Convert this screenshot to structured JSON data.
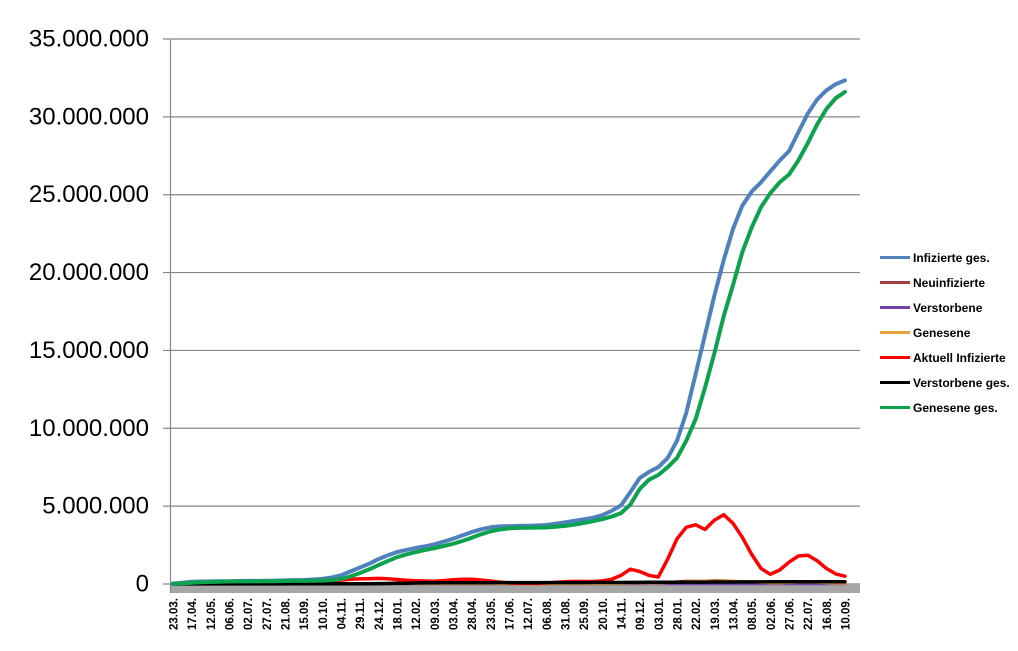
{
  "chart_data": {
    "type": "line",
    "title": "",
    "legend_position": "right",
    "grid": true,
    "colors": {
      "background": "#FFFFFF",
      "gridline": "#878787",
      "axis_line": "#878787",
      "axis_band": "#A6A6A6",
      "text": "#000000"
    },
    "y_axis": {
      "min": 0,
      "max": 35000000,
      "step": 5000000,
      "tick_labels": [
        "35.000.000",
        "30.000.000",
        "25.000.000",
        "20.000.000",
        "15.000.000",
        "10.000.000",
        "5.000.000",
        "0"
      ]
    },
    "x_axis": {
      "rotation": -90,
      "points_per_label": 2,
      "tick_labels": [
        "23.03.",
        "17.04.",
        "12.05.",
        "06.06.",
        "02.07.",
        "27.07.",
        "21.08.",
        "15.09.",
        "10.10.",
        "04.11.",
        "29.11.",
        "24.12.",
        "18.01.",
        "12.02.",
        "09.03.",
        "03.04.",
        "28.04.",
        "23.05.",
        "17.06.",
        "12.07.",
        "06.08.",
        "31.08.",
        "25.09.",
        "20.10.",
        "14.11.",
        "09.12.",
        "03.01.",
        "28.01.",
        "22.02.",
        "19.03.",
        "13.04.",
        "08.05.",
        "02.06.",
        "27.06.",
        "22.07.",
        "16.08.",
        "10.09."
      ]
    },
    "values_unit": "millions",
    "series": [
      {
        "name": "Infizierte ges.",
        "color": "#4F81BD",
        "line_width": 4,
        "values_millions": [
          0.03,
          0.08,
          0.14,
          0.16,
          0.17,
          0.18,
          0.18,
          0.19,
          0.2,
          0.2,
          0.21,
          0.22,
          0.23,
          0.25,
          0.26,
          0.29,
          0.33,
          0.42,
          0.56,
          0.8,
          1.05,
          1.3,
          1.59,
          1.84,
          2.05,
          2.19,
          2.32,
          2.42,
          2.55,
          2.72,
          2.91,
          3.12,
          3.33,
          3.51,
          3.64,
          3.7,
          3.72,
          3.73,
          3.74,
          3.76,
          3.79,
          3.87,
          3.96,
          4.05,
          4.15,
          4.26,
          4.42,
          4.7,
          5.05,
          5.9,
          6.8,
          7.2,
          7.5,
          8.1,
          9.2,
          11.0,
          13.5,
          16.0,
          18.5,
          20.8,
          22.8,
          24.3,
          25.2,
          25.8,
          26.5,
          27.2,
          27.8,
          29.0,
          30.2,
          31.1,
          31.7,
          32.1,
          32.35
        ]
      },
      {
        "name": "Neuinfizierte",
        "color": "#9E413E",
        "line_width": 2.5,
        "values_millions": [
          0.004,
          0.006,
          0.003,
          0.002,
          0.001,
          0.001,
          0.001,
          0.001,
          0.001,
          0.001,
          0.001,
          0.001,
          0.001,
          0.001,
          0.002,
          0.002,
          0.003,
          0.006,
          0.015,
          0.019,
          0.018,
          0.02,
          0.025,
          0.022,
          0.015,
          0.012,
          0.01,
          0.008,
          0.009,
          0.012,
          0.016,
          0.02,
          0.021,
          0.015,
          0.01,
          0.006,
          0.003,
          0.002,
          0.001,
          0.002,
          0.003,
          0.006,
          0.01,
          0.012,
          0.01,
          0.009,
          0.012,
          0.02,
          0.035,
          0.05,
          0.06,
          0.045,
          0.04,
          0.09,
          0.16,
          0.2,
          0.21,
          0.19,
          0.25,
          0.23,
          0.18,
          0.14,
          0.1,
          0.06,
          0.04,
          0.06,
          0.09,
          0.12,
          0.11,
          0.08,
          0.05,
          0.03,
          0.025
        ]
      },
      {
        "name": "Verstorbene",
        "color": "#7442A8",
        "line_width": 2.5,
        "values_millions": [
          0.001,
          0.001,
          0.001,
          0.001,
          0.001,
          0.001,
          0.001,
          0.001,
          0.001,
          0.001,
          0.001,
          0.001,
          0.001,
          0.001,
          0.001,
          0.001,
          0.001,
          0.001,
          0.001,
          0.001,
          0.001,
          0.001,
          0.001,
          0.001,
          0.001,
          0.001,
          0.001,
          0.001,
          0.001,
          0.001,
          0.001,
          0.001,
          0.001,
          0.001,
          0.001,
          0.001,
          0.001,
          0.001,
          0.001,
          0.001,
          0.001,
          0.001,
          0.001,
          0.001,
          0.001,
          0.001,
          0.001,
          0.001,
          0.001,
          0.001,
          0.001,
          0.001,
          0.001,
          0.001,
          0.001,
          0.001,
          0.001,
          0.001,
          0.001,
          0.001,
          0.001,
          0.001,
          0.001,
          0.001,
          0.001,
          0.001,
          0.001,
          0.001,
          0.001,
          0.001,
          0.001,
          0.001,
          0.001
        ]
      },
      {
        "name": "Genesene",
        "color": "#E9A23B",
        "line_width": 2.5,
        "values_millions": [
          0.002,
          0.004,
          0.004,
          0.003,
          0.002,
          0.001,
          0.001,
          0.001,
          0.001,
          0.001,
          0.001,
          0.001,
          0.001,
          0.001,
          0.002,
          0.002,
          0.003,
          0.005,
          0.01,
          0.015,
          0.018,
          0.018,
          0.02,
          0.022,
          0.018,
          0.014,
          0.011,
          0.009,
          0.009,
          0.01,
          0.013,
          0.017,
          0.02,
          0.018,
          0.013,
          0.008,
          0.004,
          0.002,
          0.002,
          0.002,
          0.003,
          0.005,
          0.008,
          0.011,
          0.01,
          0.009,
          0.011,
          0.017,
          0.028,
          0.042,
          0.055,
          0.05,
          0.042,
          0.07,
          0.13,
          0.18,
          0.2,
          0.195,
          0.22,
          0.23,
          0.21,
          0.17,
          0.13,
          0.085,
          0.055,
          0.06,
          0.08,
          0.105,
          0.11,
          0.095,
          0.065,
          0.04,
          0.03
        ]
      },
      {
        "name": "Aktuell Infizierte",
        "color": "#FF0000",
        "line_width": 3.5,
        "values_millions": [
          0.02,
          0.05,
          0.06,
          0.04,
          0.03,
          0.02,
          0.02,
          0.02,
          0.02,
          0.03,
          0.03,
          0.04,
          0.04,
          0.05,
          0.06,
          0.08,
          0.1,
          0.16,
          0.25,
          0.31,
          0.33,
          0.34,
          0.36,
          0.34,
          0.29,
          0.24,
          0.21,
          0.19,
          0.18,
          0.22,
          0.27,
          0.3,
          0.3,
          0.26,
          0.19,
          0.12,
          0.07,
          0.05,
          0.04,
          0.05,
          0.07,
          0.1,
          0.14,
          0.17,
          0.16,
          0.16,
          0.2,
          0.3,
          0.55,
          0.95,
          0.8,
          0.55,
          0.45,
          1.6,
          2.9,
          3.65,
          3.8,
          3.5,
          4.1,
          4.45,
          3.9,
          3.0,
          1.9,
          1.0,
          0.62,
          0.9,
          1.4,
          1.8,
          1.85,
          1.5,
          1.0,
          0.65,
          0.5
        ]
      },
      {
        "name": "Verstorbene ges.",
        "color": "#000000",
        "line_width": 3.5,
        "values_millions": [
          0.0,
          0.002,
          0.004,
          0.006,
          0.008,
          0.009,
          0.009,
          0.009,
          0.009,
          0.009,
          0.009,
          0.009,
          0.009,
          0.01,
          0.01,
          0.01,
          0.01,
          0.011,
          0.012,
          0.014,
          0.016,
          0.02,
          0.026,
          0.034,
          0.045,
          0.054,
          0.062,
          0.068,
          0.072,
          0.075,
          0.077,
          0.08,
          0.082,
          0.084,
          0.086,
          0.088,
          0.089,
          0.09,
          0.091,
          0.091,
          0.092,
          0.092,
          0.092,
          0.093,
          0.093,
          0.094,
          0.095,
          0.096,
          0.098,
          0.101,
          0.104,
          0.108,
          0.112,
          0.115,
          0.117,
          0.119,
          0.121,
          0.124,
          0.126,
          0.129,
          0.131,
          0.134,
          0.136,
          0.138,
          0.139,
          0.14,
          0.14,
          0.141,
          0.142,
          0.144,
          0.145,
          0.147,
          0.148
        ]
      },
      {
        "name": "Genesene ges.",
        "color": "#0CA24E",
        "line_width": 4,
        "values_millions": [
          0.01,
          0.03,
          0.08,
          0.11,
          0.13,
          0.15,
          0.16,
          0.17,
          0.17,
          0.17,
          0.18,
          0.18,
          0.19,
          0.2,
          0.2,
          0.21,
          0.22,
          0.25,
          0.32,
          0.48,
          0.7,
          0.94,
          1.21,
          1.47,
          1.72,
          1.9,
          2.05,
          2.18,
          2.3,
          2.44,
          2.58,
          2.76,
          2.97,
          3.19,
          3.38,
          3.5,
          3.57,
          3.6,
          3.61,
          3.62,
          3.63,
          3.68,
          3.73,
          3.81,
          3.92,
          4.03,
          4.16,
          4.33,
          4.55,
          5.1,
          6.1,
          6.7,
          7.0,
          7.5,
          8.1,
          9.2,
          10.6,
          12.6,
          14.8,
          17.2,
          19.2,
          21.3,
          22.9,
          24.2,
          25.1,
          25.8,
          26.3,
          27.2,
          28.3,
          29.5,
          30.5,
          31.2,
          31.6
        ]
      }
    ]
  }
}
